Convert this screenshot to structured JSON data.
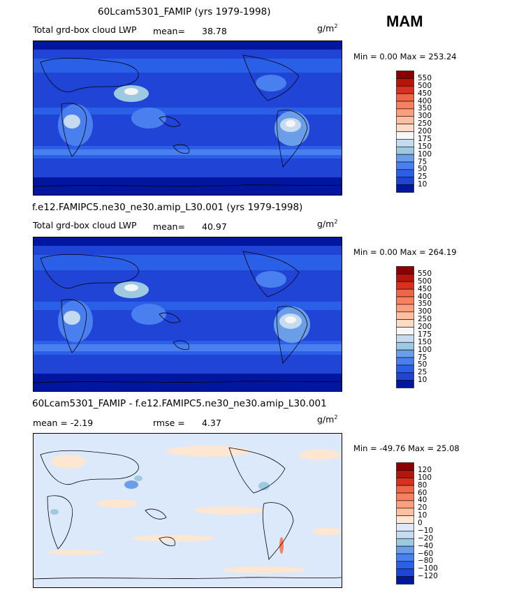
{
  "season": "MAM",
  "panels": [
    {
      "title": "60Lcam5301_FAMIP (yrs 1979-1998)",
      "left_label": "Total grd-box cloud LWP",
      "stat_label": "mean=",
      "stat_value": "38.78",
      "units": "g/m",
      "units_exp": "2",
      "min_max": "Min =    0.00 Max = 253.24",
      "kind": "abs"
    },
    {
      "title": "f.e12.FAMIPC5.ne30_ne30.amip_L30.001 (yrs 1979-1998)",
      "left_label": "Total grd-box cloud LWP",
      "stat_label": "mean=",
      "stat_value": "40.97",
      "units": "g/m",
      "units_exp": "2",
      "min_max": "Min =    0.00 Max = 264.19",
      "kind": "abs"
    },
    {
      "title": "60Lcam5301_FAMIP - f.e12.FAMIPC5.ne30_ne30.amip_L30.001",
      "left_label": "mean =  -2.19",
      "stat_label": "rmse =",
      "stat_value": "4.37",
      "units": "g/m",
      "units_exp": "2",
      "min_max": "Min = -49.76 Max =  25.08",
      "kind": "diff"
    }
  ],
  "colorbars": {
    "abs": {
      "labels": [
        "550",
        "500",
        "450",
        "400",
        "350",
        "300",
        "250",
        "200",
        "175",
        "150",
        "100",
        "75",
        "50",
        "25",
        "10"
      ],
      "colors": [
        "#8b0000",
        "#b5150b",
        "#d7301f",
        "#ef6548",
        "#f7805e",
        "#fc9f7f",
        "#fdbf9f",
        "#fddac4",
        "#f5f5f5",
        "#c6dbef",
        "#9ecae1",
        "#6b9ee8",
        "#4a7ff0",
        "#2a5fe8",
        "#1f44d6",
        "#00169f"
      ]
    },
    "diff": {
      "labels": [
        "120",
        "100",
        "80",
        "60",
        "40",
        "20",
        "10",
        "0",
        "−10",
        "−20",
        "−40",
        "−60",
        "−80",
        "−100",
        "−120"
      ],
      "colors": [
        "#8b0000",
        "#b5150b",
        "#d7301f",
        "#ef6548",
        "#f7805e",
        "#fc9f7f",
        "#fdbf9f",
        "#fde6d2",
        "#dbe9fb",
        "#c6dbef",
        "#9ecae1",
        "#6b9ee8",
        "#4a7ff0",
        "#2a5fe8",
        "#1f44d6",
        "#00169f"
      ]
    }
  },
  "chart_data": [
    {
      "type": "heatmap",
      "title": "60Lcam5301_FAMIP (yrs 1979-1998)",
      "variable": "Total grd-box cloud LWP",
      "units": "g/m2",
      "mean": 38.78,
      "min": 0.0,
      "max": 253.24,
      "contour_levels": [
        10,
        25,
        50,
        75,
        100,
        150,
        175,
        200,
        250,
        300,
        350,
        400,
        450,
        500,
        550
      ]
    },
    {
      "type": "heatmap",
      "title": "f.e12.FAMIPC5.ne30_ne30.amip_L30.001 (yrs 1979-1998)",
      "variable": "Total grd-box cloud LWP",
      "units": "g/m2",
      "mean": 40.97,
      "min": 0.0,
      "max": 264.19,
      "contour_levels": [
        10,
        25,
        50,
        75,
        100,
        150,
        175,
        200,
        250,
        300,
        350,
        400,
        450,
        500,
        550
      ]
    },
    {
      "type": "heatmap",
      "title": "60Lcam5301_FAMIP - f.e12.FAMIPC5.ne30_ne30.amip_L30.001",
      "units": "g/m2",
      "mean": -2.19,
      "rmse": 4.37,
      "min": -49.76,
      "max": 25.08,
      "contour_levels": [
        -120,
        -100,
        -80,
        -60,
        -40,
        -20,
        -10,
        0,
        10,
        20,
        40,
        60,
        80,
        100,
        120
      ]
    }
  ]
}
